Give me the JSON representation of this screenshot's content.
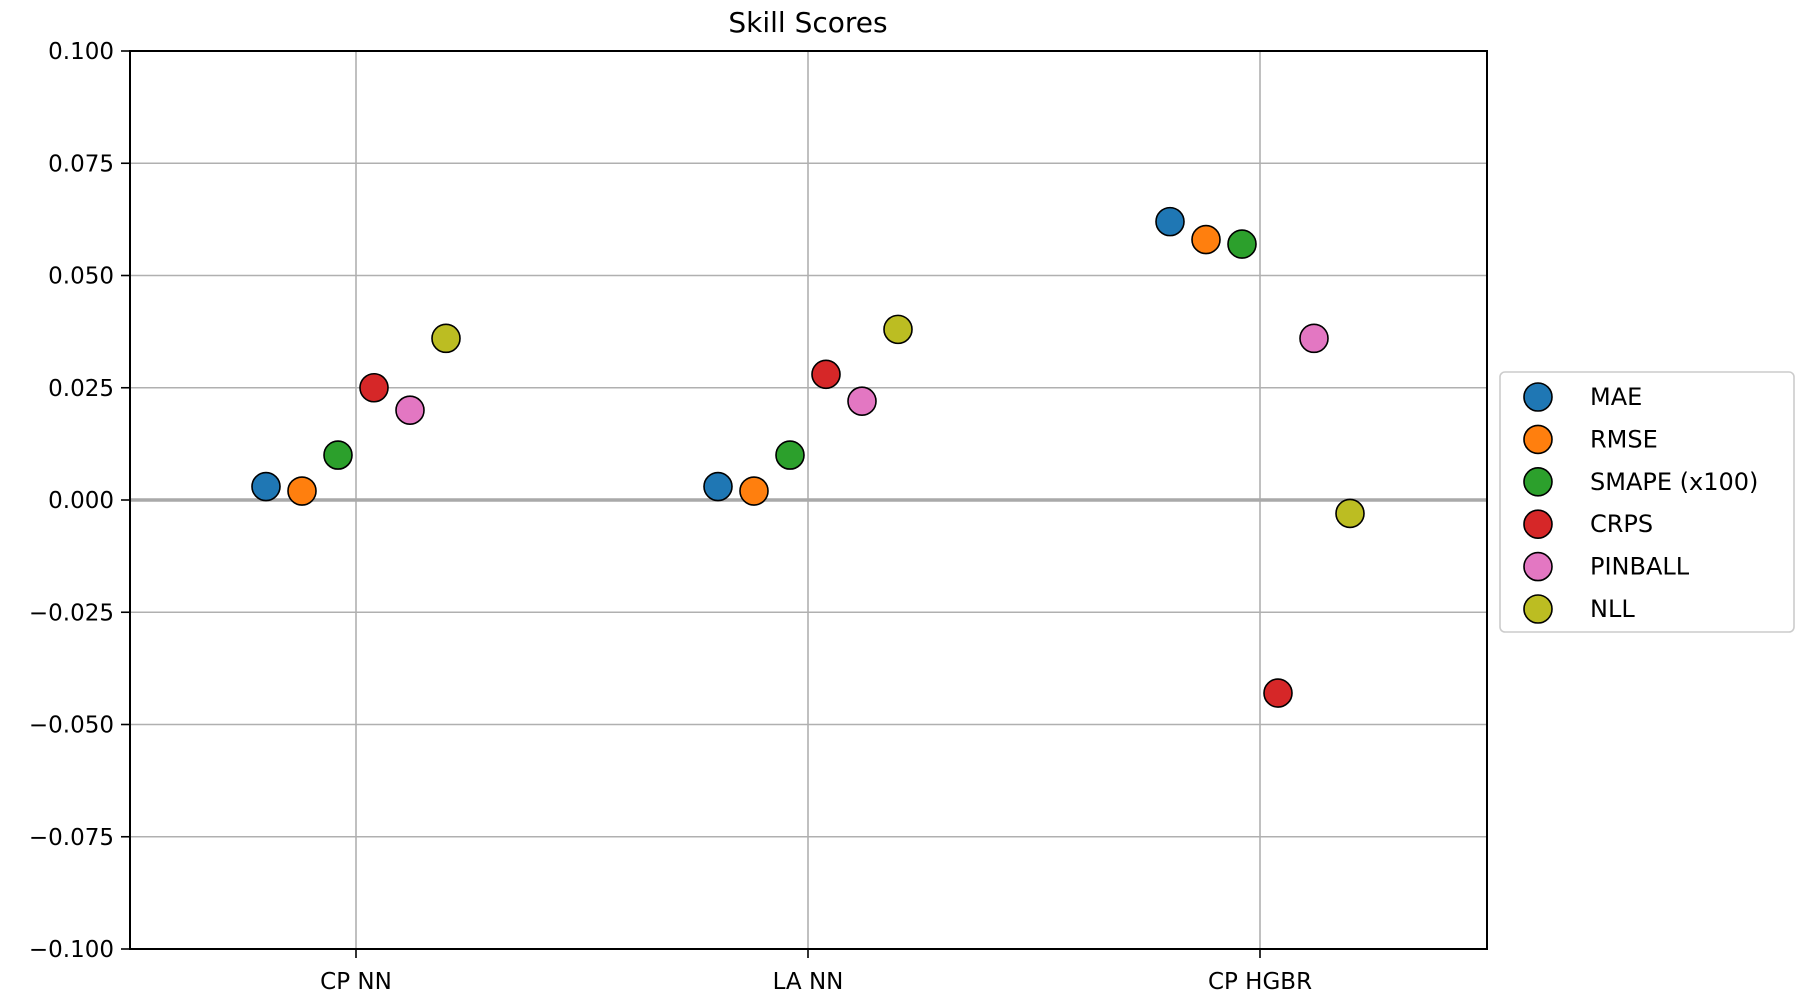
{
  "chart_data": {
    "type": "scatter",
    "title": "Skill Scores",
    "xlabel": "",
    "ylabel": "",
    "categories": [
      "CP NN",
      "LA NN",
      "CP HGBR"
    ],
    "ylim": [
      -0.1,
      0.1
    ],
    "yticks": [
      0.1,
      0.075,
      0.05,
      0.025,
      0.0,
      -0.025,
      -0.05,
      -0.075,
      -0.1
    ],
    "ytick_labels": [
      "0.100",
      "0.075",
      "0.050",
      "0.025",
      "0.000",
      "−0.025",
      "−0.050",
      "−0.075",
      "−0.100"
    ],
    "grid": true,
    "zero_line": true,
    "legend_position": "center-right-outside",
    "series": [
      {
        "name": "MAE",
        "color": "#1f77b4",
        "values": [
          0.003,
          0.003,
          0.062
        ]
      },
      {
        "name": "RMSE",
        "color": "#ff7f0e",
        "values": [
          0.002,
          0.002,
          0.058
        ]
      },
      {
        "name": "SMAPE (x100)",
        "color": "#2ca02c",
        "values": [
          0.01,
          0.01,
          0.057
        ]
      },
      {
        "name": "CRPS",
        "color": "#d62728",
        "values": [
          0.025,
          0.028,
          -0.043
        ]
      },
      {
        "name": "PINBALL",
        "color": "#e377c2",
        "values": [
          0.02,
          0.022,
          0.036
        ]
      },
      {
        "name": "NLL",
        "color": "#bcbd22",
        "values": [
          0.036,
          0.038,
          -0.003
        ]
      }
    ]
  }
}
